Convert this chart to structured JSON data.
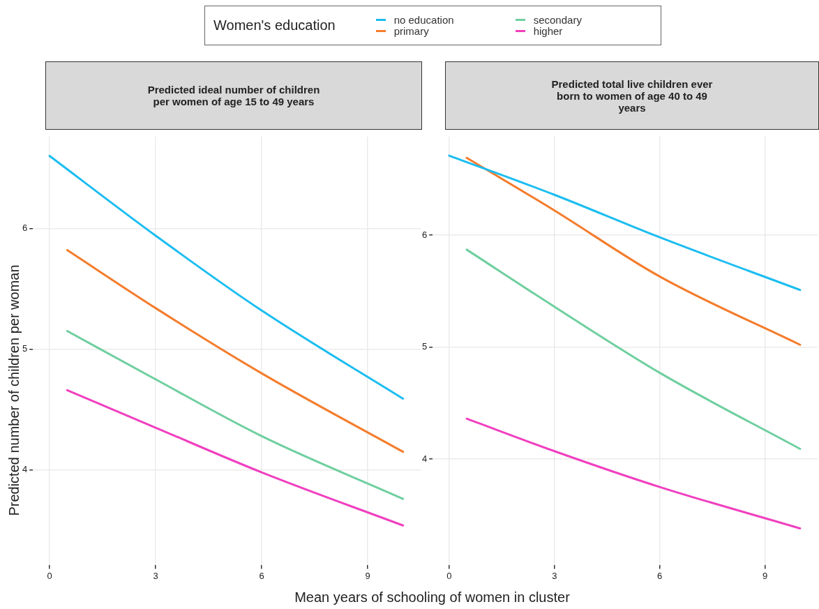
{
  "chart_data": [
    {
      "type": "line",
      "title": "Predicted ideal number of children per women of age 15 to 49 years",
      "xlabel": "Mean years of schooling of women in cluster",
      "ylabel": "Predicted number of children per woman",
      "legend_title": "Women's education",
      "legend": "top",
      "grid": true,
      "xlim": [
        -0.47,
        10.5
      ],
      "xticks": [
        0,
        3,
        6,
        9
      ],
      "ylim": [
        3.21,
        6.76
      ],
      "yticks": [
        4,
        5,
        6
      ],
      "series": [
        {
          "name": "no education",
          "color": "#1cbdf0",
          "x": [
            0,
            3,
            6,
            10
          ],
          "values": [
            6.6,
            5.94,
            5.32,
            4.59
          ]
        },
        {
          "name": "primary",
          "color": "#f47c2c",
          "x": [
            0.5,
            3,
            6,
            10
          ],
          "values": [
            5.82,
            5.34,
            4.8,
            4.15
          ]
        },
        {
          "name": "secondary",
          "color": "#6fcf9f",
          "x": [
            0.5,
            3,
            6,
            10
          ],
          "values": [
            5.15,
            4.75,
            4.28,
            3.76
          ]
        },
        {
          "name": "higher",
          "color": "#f03fbf",
          "x": [
            0.5,
            3,
            6,
            10
          ],
          "values": [
            4.66,
            4.35,
            3.98,
            3.54
          ]
        }
      ]
    },
    {
      "type": "line",
      "title": "Predicted total live children ever born to women of age 40 to 49 years",
      "grid": true,
      "xlim": [
        -0.47,
        10.5
      ],
      "xticks": [
        0,
        3,
        6,
        9
      ],
      "ylim": [
        3.05,
        6.88
      ],
      "yticks": [
        4,
        5,
        6
      ],
      "series": [
        {
          "color": "#1cbdf0",
          "x": [
            0,
            3,
            6,
            10
          ],
          "values": [
            6.71,
            6.36,
            5.98,
            5.51
          ]
        },
        {
          "color": "#f47c2c",
          "x": [
            0.5,
            3,
            6,
            10
          ],
          "values": [
            6.69,
            6.22,
            5.63,
            5.02
          ]
        },
        {
          "color": "#6fcf9f",
          "x": [
            0.5,
            3,
            6,
            10
          ],
          "values": [
            5.87,
            5.36,
            4.77,
            4.09
          ]
        },
        {
          "color": "#f03fbf",
          "x": [
            0.5,
            3,
            6,
            10
          ],
          "values": [
            4.36,
            4.07,
            3.75,
            3.38
          ]
        }
      ]
    }
  ]
}
